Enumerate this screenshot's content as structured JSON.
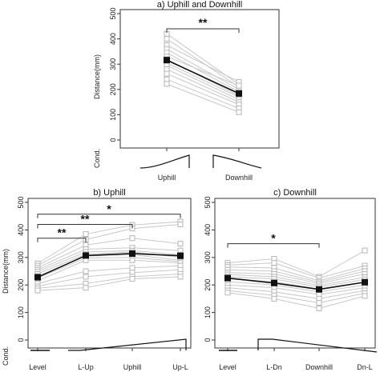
{
  "chart_data": [
    {
      "type": "line",
      "title": "a) Uphill  and  Downhill",
      "ylabel": "Distance(mm)",
      "ylim": [
        0,
        500
      ],
      "yticks": [
        0,
        100,
        200,
        300,
        400,
        500
      ],
      "categories": [
        "Uphill",
        "Downhill"
      ],
      "condition_label": "Cond.",
      "condition_profile": [
        [
          0,
          0.2
        ],
        [
          1,
          0.8
        ],
        [
          1,
          0.2
        ],
        [
          0,
          0.8
        ]
      ],
      "series": [
        {
          "role": "mean",
          "values": [
            316,
            184
          ]
        },
        {
          "role": "subject",
          "values": [
            420,
            220
          ]
        },
        {
          "role": "subject",
          "values": [
            400,
            210
          ]
        },
        {
          "role": "subject",
          "values": [
            375,
            230
          ]
        },
        {
          "role": "subject",
          "values": [
            360,
            200
          ]
        },
        {
          "role": "subject",
          "values": [
            345,
            190
          ]
        },
        {
          "role": "subject",
          "values": [
            330,
            215
          ]
        },
        {
          "role": "subject",
          "values": [
            320,
            175
          ]
        },
        {
          "role": "subject",
          "values": [
            305,
            170
          ]
        },
        {
          "role": "subject",
          "values": [
            295,
            160
          ]
        },
        {
          "role": "subject",
          "values": [
            280,
            150
          ]
        },
        {
          "role": "subject",
          "values": [
            262,
            140
          ]
        },
        {
          "role": "subject",
          "values": [
            240,
            125
          ]
        },
        {
          "role": "subject",
          "values": [
            222,
            110
          ]
        }
      ],
      "significance": [
        {
          "from": 0,
          "to": 1,
          "label": "**"
        }
      ]
    },
    {
      "type": "line",
      "title": "b) Uphill",
      "ylabel": "Distance(mm)",
      "ylim": [
        0,
        500
      ],
      "yticks": [
        0,
        100,
        200,
        300,
        400,
        500
      ],
      "categories": [
        "Level",
        "L-Up",
        "Uphill",
        "Up-L"
      ],
      "condition_label": "Cond.",
      "series": [
        {
          "role": "mean",
          "values": [
            228,
            307,
            314,
            306
          ]
        },
        {
          "role": "subject",
          "values": [
            278,
            385,
            418,
            430
          ]
        },
        {
          "role": "subject",
          "values": [
            270,
            365,
            405,
            420
          ]
        },
        {
          "role": "subject",
          "values": [
            262,
            345,
            370,
            350
          ]
        },
        {
          "role": "subject",
          "values": [
            255,
            330,
            335,
            325
          ]
        },
        {
          "role": "subject",
          "values": [
            248,
            320,
            325,
            310
          ]
        },
        {
          "role": "subject",
          "values": [
            240,
            312,
            320,
            300
          ]
        },
        {
          "role": "subject",
          "values": [
            232,
            305,
            310,
            290
          ]
        },
        {
          "role": "subject",
          "values": [
            225,
            298,
            300,
            285
          ]
        },
        {
          "role": "subject",
          "values": [
            215,
            290,
            290,
            280
          ]
        },
        {
          "role": "subject",
          "values": [
            205,
            250,
            262,
            270
          ]
        },
        {
          "role": "subject",
          "values": [
            195,
            230,
            245,
            255
          ]
        },
        {
          "role": "subject",
          "values": [
            188,
            205,
            230,
            240
          ]
        },
        {
          "role": "subject",
          "values": [
            180,
            190,
            222,
            230
          ]
        }
      ],
      "significance": [
        {
          "from": 0,
          "to": 1,
          "label": "**"
        },
        {
          "from": 0,
          "to": 2,
          "label": "**"
        },
        {
          "from": 0,
          "to": 3,
          "label": "*"
        }
      ]
    },
    {
      "type": "line",
      "title": "c) Downhill",
      "ylim": [
        0,
        500
      ],
      "yticks": [
        0,
        100,
        200,
        300,
        400,
        500
      ],
      "categories": [
        "Level",
        "L-Dn",
        "Downhill",
        "Dn-L"
      ],
      "series": [
        {
          "role": "mean",
          "values": [
            225,
            207,
            184,
            210
          ]
        },
        {
          "role": "subject",
          "values": [
            280,
            295,
            230,
            325
          ]
        },
        {
          "role": "subject",
          "values": [
            272,
            280,
            225,
            270
          ]
        },
        {
          "role": "subject",
          "values": [
            265,
            262,
            215,
            260
          ]
        },
        {
          "role": "subject",
          "values": [
            255,
            250,
            210,
            250
          ]
        },
        {
          "role": "subject",
          "values": [
            245,
            240,
            205,
            240
          ]
        },
        {
          "role": "subject",
          "values": [
            238,
            230,
            198,
            228
          ]
        },
        {
          "role": "subject",
          "values": [
            230,
            222,
            192,
            220
          ]
        },
        {
          "role": "subject",
          "values": [
            222,
            212,
            185,
            210
          ]
        },
        {
          "role": "subject",
          "values": [
            212,
            200,
            175,
            200
          ]
        },
        {
          "role": "subject",
          "values": [
            200,
            190,
            165,
            190
          ]
        },
        {
          "role": "subject",
          "values": [
            190,
            175,
            150,
            180
          ]
        },
        {
          "role": "subject",
          "values": [
            180,
            162,
            135,
            170
          ]
        },
        {
          "role": "subject",
          "values": [
            172,
            150,
            115,
            160
          ]
        }
      ],
      "significance": [
        {
          "from": 0,
          "to": 2,
          "label": "*"
        }
      ]
    }
  ]
}
